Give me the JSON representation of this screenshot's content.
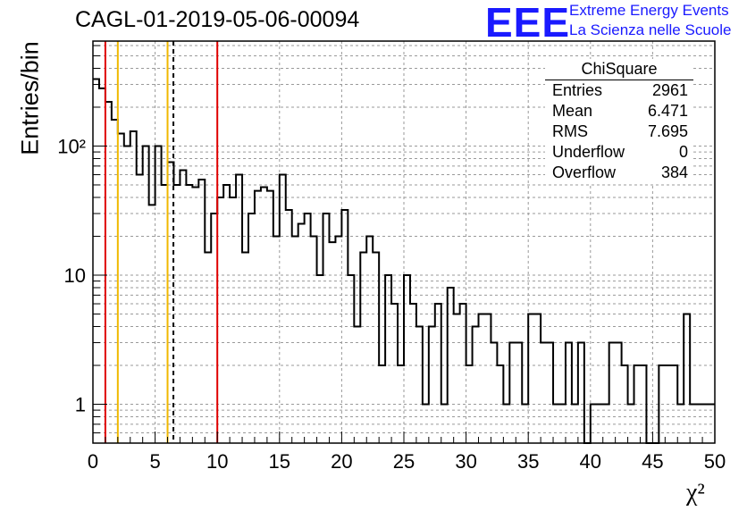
{
  "title": "CAGL-01-2019-05-06-00094",
  "logo": {
    "mark": "EEE",
    "line1": "Extreme Energy Events",
    "line2": "La Scienza nelle Scuole",
    "color": "#1a1aff"
  },
  "stats_box": {
    "name": "ChiSquare",
    "rows": [
      {
        "label": "Entries",
        "value": "2961"
      },
      {
        "label": "Mean",
        "value": "6.471"
      },
      {
        "label": "RMS",
        "value": "7.695"
      },
      {
        "label": "Underflow",
        "value": "0"
      },
      {
        "label": "Overflow",
        "value": "384"
      }
    ]
  },
  "chart_data": {
    "type": "histogram",
    "xlabel": "χ²",
    "ylabel": "Entries/bin",
    "xlim": [
      0,
      50
    ],
    "ylim": [
      0.5,
      650
    ],
    "y_scale": "log",
    "grid": true,
    "bin_width": 0.5,
    "x_ticks": [
      0,
      5,
      10,
      15,
      20,
      25,
      30,
      35,
      40,
      45,
      50
    ],
    "x_tick_labels": [
      "0",
      "5",
      "10",
      "15",
      "20",
      "25",
      "30",
      "35",
      "40",
      "45",
      "50"
    ],
    "y_ticks": [
      1,
      10,
      100
    ],
    "y_tick_labels": [
      "1",
      "10",
      "10²"
    ],
    "values": [
      330,
      280,
      220,
      160,
      125,
      100,
      130,
      60,
      100,
      35,
      100,
      50,
      75,
      50,
      65,
      50,
      48,
      55,
      15,
      30,
      40,
      50,
      40,
      60,
      15,
      30,
      45,
      48,
      45,
      20,
      60,
      32,
      20,
      25,
      30,
      20,
      10,
      30,
      18,
      20,
      32,
      10,
      4,
      15,
      20,
      15,
      2,
      10,
      6,
      2,
      10,
      6,
      4,
      1,
      4,
      6,
      1,
      8,
      5,
      6,
      2,
      4,
      5,
      5,
      3,
      2,
      1,
      3,
      3,
      1,
      5,
      5,
      3,
      3,
      1,
      1,
      3,
      1,
      3,
      0,
      1,
      1,
      1,
      3,
      3,
      2,
      1,
      2,
      2,
      0,
      0,
      2,
      2,
      2,
      1,
      5,
      1,
      1,
      1,
      1
    ],
    "lines": [
      {
        "x": 1.0,
        "color": "#e00000",
        "style": "solid"
      },
      {
        "x": 2.0,
        "color": "#f0b800",
        "style": "solid"
      },
      {
        "x": 6.0,
        "color": "#f0b800",
        "style": "solid"
      },
      {
        "x": 6.471,
        "color": "#000000",
        "style": "dashed"
      },
      {
        "x": 10.0,
        "color": "#e00000",
        "style": "solid"
      }
    ]
  }
}
